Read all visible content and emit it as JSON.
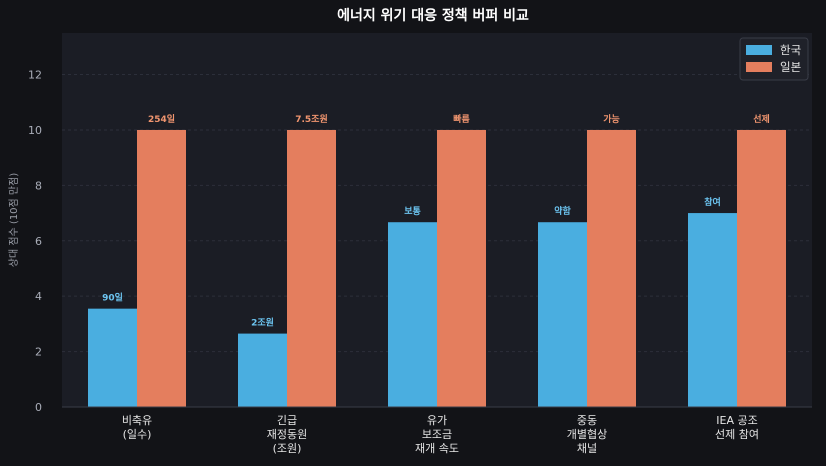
{
  "chart_data": {
    "type": "bar",
    "title": "에너지 위기 대응 정책 버퍼 비교",
    "xlabel": "",
    "ylabel": "상대 점수 (10점 만점)",
    "ylim": [
      0,
      13.5
    ],
    "yticks": [
      0,
      2,
      4,
      6,
      8,
      10,
      12
    ],
    "grid": true,
    "legend_position": "top-right",
    "categories": [
      [
        "비축유",
        "(일수)"
      ],
      [
        "긴급",
        "재정동원",
        "(조원)"
      ],
      [
        "유가",
        "보조금",
        "재개 속도"
      ],
      [
        "중동",
        "개별협상",
        "채널"
      ],
      [
        "IEA 공조",
        "선제 참여"
      ]
    ],
    "series": [
      {
        "name": "한국",
        "color": "#4aaee0",
        "label_color": "#6cc4f0",
        "values": [
          3.55,
          2.65,
          6.67,
          6.67,
          7.0
        ],
        "labels": [
          "90일",
          "2조원",
          "보통",
          "약함",
          "참여"
        ]
      },
      {
        "name": "일본",
        "color": "#e47e5e",
        "label_color": "#f0956f",
        "values": [
          10,
          10,
          10,
          10,
          10
        ],
        "labels": [
          "254일",
          "7.5조원",
          "빠름",
          "가능",
          "선제"
        ]
      }
    ]
  },
  "colors": {
    "page_bg": "#121317",
    "plot_bg": "#1b1d25",
    "grid": "#2c2f3a"
  }
}
